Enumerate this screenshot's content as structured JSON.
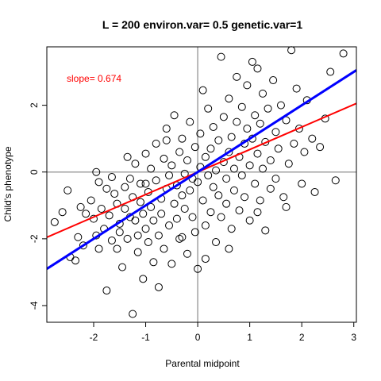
{
  "chart_data": {
    "type": "scatter",
    "title": "L = 200 environ.var= 0.5 genetic.var=1",
    "xlabel": "Parental midpoint",
    "ylabel": "Child's phenotype",
    "annotation": "slope=  0.674",
    "xlim": [
      -2.9,
      3.05
    ],
    "ylim": [
      -4.5,
      3.75
    ],
    "xticks": [
      -2,
      -1,
      0,
      1,
      2,
      3
    ],
    "yticks": [
      -4,
      -2,
      0,
      2
    ],
    "reference_lines": {
      "x": 0,
      "y": 0
    },
    "fit_lines": [
      {
        "name": "regression",
        "color": "#ff0000",
        "intercept": 0.0,
        "slope": 0.674
      },
      {
        "name": "identity",
        "color": "#0000ff",
        "intercept": 0.0,
        "slope": 1.0
      }
    ],
    "points": [
      [
        -2.75,
        -1.5
      ],
      [
        -2.5,
        -0.55
      ],
      [
        -2.45,
        -2.55
      ],
      [
        -2.35,
        -2.65
      ],
      [
        -2.3,
        -1.95
      ],
      [
        -2.2,
        -2.2
      ],
      [
        -2.15,
        -1.25
      ],
      [
        -2.05,
        -0.85
      ],
      [
        -2.0,
        -1.4
      ],
      [
        -1.95,
        -1.9
      ],
      [
        -1.9,
        -0.3
      ],
      [
        -1.9,
        -2.3
      ],
      [
        -1.85,
        -1.1
      ],
      [
        -1.8,
        -1.7
      ],
      [
        -1.75,
        -0.5
      ],
      [
        -1.75,
        -3.55
      ],
      [
        -1.7,
        -1.3
      ],
      [
        -1.65,
        -2.05
      ],
      [
        -1.6,
        -0.65
      ],
      [
        -1.55,
        -0.95
      ],
      [
        -1.55,
        -2.3
      ],
      [
        -1.5,
        -1.55
      ],
      [
        -1.5,
        -1.8
      ],
      [
        -1.45,
        -2.85
      ],
      [
        -1.4,
        -0.45
      ],
      [
        -1.4,
        -1.1
      ],
      [
        -1.35,
        -2.0
      ],
      [
        -1.3,
        -1.35
      ],
      [
        -1.3,
        -0.2
      ],
      [
        -1.25,
        -4.25
      ],
      [
        -1.25,
        -0.75
      ],
      [
        -1.2,
        -1.45
      ],
      [
        -1.2,
        0.25
      ],
      [
        -1.15,
        -1.9
      ],
      [
        -1.15,
        -2.4
      ],
      [
        -1.1,
        -0.9
      ],
      [
        -1.1,
        -0.35
      ],
      [
        -1.05,
        -1.25
      ],
      [
        -1.05,
        -3.2
      ],
      [
        -1.0,
        -1.7
      ],
      [
        -1.0,
        0.55
      ],
      [
        -0.95,
        -0.6
      ],
      [
        -0.95,
        -2.1
      ],
      [
        -0.9,
        -1.05
      ],
      [
        -0.9,
        0.1
      ],
      [
        -0.85,
        -1.45
      ],
      [
        -0.85,
        -2.7
      ],
      [
        -0.8,
        -0.25
      ],
      [
        -0.8,
        0.85
      ],
      [
        -0.75,
        -1.9
      ],
      [
        -0.75,
        -3.45
      ],
      [
        -0.7,
        -0.8
      ],
      [
        -0.7,
        -1.25
      ],
      [
        -0.65,
        0.4
      ],
      [
        -0.65,
        -2.3
      ],
      [
        -0.6,
        -0.5
      ],
      [
        -0.6,
        1.3
      ],
      [
        -0.55,
        -1.6
      ],
      [
        -0.55,
        -0.1
      ],
      [
        -0.5,
        0.2
      ],
      [
        -0.5,
        -2.75
      ],
      [
        -0.45,
        -0.95
      ],
      [
        -0.45,
        1.7
      ],
      [
        -0.4,
        -1.4
      ],
      [
        -0.4,
        -0.4
      ],
      [
        -0.35,
        0.6
      ],
      [
        -0.35,
        -2.0
      ],
      [
        -0.3,
        -0.7
      ],
      [
        -0.3,
        1.0
      ],
      [
        -0.25,
        -1.1
      ],
      [
        -0.25,
        -0.05
      ],
      [
        -0.2,
        -2.45
      ],
      [
        -0.2,
        0.35
      ],
      [
        -0.15,
        -0.55
      ],
      [
        -0.15,
        1.5
      ],
      [
        -0.1,
        -1.35
      ],
      [
        -0.1,
        -0.2
      ],
      [
        -0.05,
        0.75
      ],
      [
        -0.05,
        -1.8
      ],
      [
        0.0,
        -2.9
      ],
      [
        0.0,
        -0.3
      ],
      [
        0.05,
        0.15
      ],
      [
        0.05,
        1.15
      ],
      [
        0.1,
        -0.85
      ],
      [
        0.1,
        2.45
      ],
      [
        0.15,
        -1.6
      ],
      [
        0.15,
        0.45
      ],
      [
        0.2,
        -0.1
      ],
      [
        0.2,
        1.9
      ],
      [
        0.25,
        -1.2
      ],
      [
        0.25,
        0.7
      ],
      [
        0.3,
        -0.45
      ],
      [
        0.3,
        1.35
      ],
      [
        0.35,
        0.05
      ],
      [
        0.35,
        -2.1
      ],
      [
        0.4,
        -0.7
      ],
      [
        0.4,
        0.95
      ],
      [
        0.45,
        3.45
      ],
      [
        0.45,
        -1.35
      ],
      [
        0.5,
        0.3
      ],
      [
        0.5,
        1.65
      ],
      [
        0.55,
        -0.2
      ],
      [
        0.55,
        -0.95
      ],
      [
        0.6,
        0.6
      ],
      [
        0.6,
        2.2
      ],
      [
        0.65,
        -1.7
      ],
      [
        0.65,
        1.05
      ],
      [
        0.7,
        0.1
      ],
      [
        0.7,
        -0.55
      ],
      [
        0.75,
        1.5
      ],
      [
        0.75,
        2.85
      ],
      [
        0.8,
        -1.15
      ],
      [
        0.8,
        0.45
      ],
      [
        0.85,
        -0.1
      ],
      [
        0.85,
        1.95
      ],
      [
        0.9,
        0.85
      ],
      [
        0.9,
        -0.75
      ],
      [
        0.95,
        1.3
      ],
      [
        0.95,
        2.6
      ],
      [
        1.0,
        0.2
      ],
      [
        1.0,
        -1.45
      ],
      [
        1.05,
        3.3
      ],
      [
        1.05,
        1.0
      ],
      [
        1.1,
        -0.35
      ],
      [
        1.1,
        1.7
      ],
      [
        1.15,
        0.55
      ],
      [
        1.15,
        3.1
      ],
      [
        1.2,
        -0.85
      ],
      [
        1.2,
        1.45
      ],
      [
        1.25,
        0.1
      ],
      [
        1.25,
        2.35
      ],
      [
        1.3,
        -1.75
      ],
      [
        1.3,
        0.9
      ],
      [
        1.35,
        1.9
      ],
      [
        1.4,
        -0.5
      ],
      [
        1.4,
        0.35
      ],
      [
        1.45,
        2.75
      ],
      [
        1.5,
        1.2
      ],
      [
        1.5,
        -0.2
      ],
      [
        1.55,
        0.7
      ],
      [
        1.6,
        2.0
      ],
      [
        1.65,
        -0.75
      ],
      [
        1.7,
        1.55
      ],
      [
        1.75,
        0.25
      ],
      [
        1.8,
        3.65
      ],
      [
        1.85,
        0.85
      ],
      [
        1.9,
        2.5
      ],
      [
        1.95,
        1.3
      ],
      [
        2.0,
        -0.35
      ],
      [
        2.05,
        0.6
      ],
      [
        2.1,
        2.15
      ],
      [
        2.2,
        1.0
      ],
      [
        2.25,
        -0.6
      ],
      [
        2.35,
        0.75
      ],
      [
        2.45,
        1.6
      ],
      [
        2.55,
        3.0
      ],
      [
        2.65,
        -0.25
      ],
      [
        2.8,
        3.55
      ],
      [
        -2.6,
        -1.2
      ],
      [
        -2.25,
        -1.05
      ],
      [
        -1.95,
        0.0
      ],
      [
        -1.65,
        -0.15
      ],
      [
        -1.35,
        0.45
      ],
      [
        -1.0,
        -0.35
      ],
      [
        -0.6,
        0.95
      ],
      [
        -0.3,
        -1.95
      ],
      [
        0.15,
        -2.6
      ],
      [
        0.6,
        -2.3
      ],
      [
        1.15,
        -1.2
      ],
      [
        1.7,
        -1.05
      ]
    ]
  }
}
